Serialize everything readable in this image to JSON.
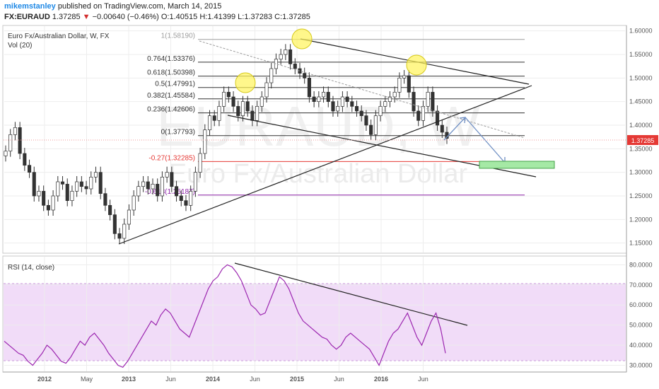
{
  "header": {
    "author": "mikemstanley",
    "published_text": "published on TradingView.com, March 14, 2015",
    "symbol": "FX:EURAUD",
    "last_price": "1.37285",
    "change_arrow": "▼",
    "change": "−0.00640 (−0.46%)",
    "open": "O:1.40515",
    "high": "H:1.41399",
    "low": "L:1.37283",
    "close": "C:1.37285"
  },
  "chart_data": [
    {
      "type": "candlestick",
      "title": "Euro Fx/Australian Dollar, W, FX",
      "subtitle": "Vol (20)",
      "watermark_symbol": "EURAUD, W",
      "watermark_name": "Euro Fx/Australian Dollar",
      "ylim": [
        1.13,
        1.61
      ],
      "y_ticks": [
        "1.60000",
        "1.55000",
        "1.50000",
        "1.45000",
        "1.40000",
        "1.35000",
        "1.30000",
        "1.25000",
        "1.20000",
        "1.15000"
      ],
      "x_ticks": [
        "2012",
        "May",
        "2013",
        "Jun",
        "2014",
        "Jun",
        "2015",
        "Jun",
        "2016",
        "Jun"
      ],
      "fib_levels": [
        {
          "label": "1(1.58190)",
          "value": 1.5819,
          "color": "#9e9e9e"
        },
        {
          "label": "0.764(1.53376)",
          "value": 1.53376,
          "color": "#333333"
        },
        {
          "label": "0.618(1.50398)",
          "value": 1.50398,
          "color": "#333333"
        },
        {
          "label": "0.5(1.47991)",
          "value": 1.47991,
          "color": "#333333"
        },
        {
          "label": "0.382(1.45584)",
          "value": 1.45584,
          "color": "#333333"
        },
        {
          "label": "0.236(1.42606)",
          "value": 1.42606,
          "color": "#333333"
        },
        {
          "label": "0(1.37793)",
          "value": 1.37793,
          "color": "#333333"
        },
        {
          "label": "-0.27(1.32285)",
          "value": 1.32285,
          "color": "#e53935"
        },
        {
          "label": "-0.618(1.25187)",
          "value": 1.25187,
          "color": "#8e24aa"
        }
      ],
      "close_series": [
        1.345,
        1.38,
        1.395,
        1.34,
        1.315,
        1.3,
        1.25,
        1.26,
        1.23,
        1.22,
        1.25,
        1.28,
        1.275,
        1.24,
        1.26,
        1.28,
        1.27,
        1.265,
        1.29,
        1.3,
        1.255,
        1.23,
        1.21,
        1.17,
        1.16,
        1.19,
        1.22,
        1.25,
        1.27,
        1.28,
        1.265,
        1.275,
        1.25,
        1.29,
        1.3,
        1.27,
        1.25,
        1.24,
        1.23,
        1.26,
        1.3,
        1.34,
        1.39,
        1.42,
        1.41,
        1.44,
        1.47,
        1.46,
        1.44,
        1.42,
        1.45,
        1.43,
        1.41,
        1.44,
        1.46,
        1.49,
        1.52,
        1.54,
        1.55,
        1.56,
        1.53,
        1.52,
        1.51,
        1.5,
        1.46,
        1.45,
        1.46,
        1.47,
        1.45,
        1.43,
        1.44,
        1.46,
        1.45,
        1.44,
        1.43,
        1.42,
        1.4,
        1.38,
        1.42,
        1.44,
        1.45,
        1.46,
        1.47,
        1.5,
        1.505,
        1.47,
        1.43,
        1.41,
        1.44,
        1.47,
        1.43,
        1.4,
        1.385,
        1.372
      ],
      "current_price": "1.37285"
    },
    {
      "type": "line",
      "title": "RSI (14, close)",
      "ylim": [
        27,
        84
      ],
      "y_ticks": [
        "80.0000",
        "70.0000",
        "60.0000",
        "50.0000",
        "40.0000",
        "30.0000"
      ],
      "band": [
        30,
        70
      ],
      "values": [
        42,
        40,
        38,
        36,
        35,
        32,
        30,
        33,
        36,
        40,
        38,
        35,
        32,
        31,
        34,
        38,
        42,
        40,
        44,
        46,
        43,
        40,
        36,
        33,
        30,
        29,
        32,
        36,
        40,
        44,
        48,
        52,
        50,
        55,
        58,
        56,
        52,
        48,
        46,
        44,
        50,
        56,
        62,
        68,
        72,
        74,
        78,
        80,
        79,
        76,
        72,
        66,
        60,
        58,
        55,
        56,
        62,
        68,
        74,
        72,
        68,
        62,
        56,
        52,
        50,
        48,
        46,
        44,
        43,
        40,
        38,
        40,
        44,
        46,
        44,
        42,
        40,
        38,
        34,
        30,
        36,
        42,
        46,
        48,
        52,
        56,
        50,
        44,
        40,
        46,
        52,
        56,
        48,
        36
      ]
    }
  ]
}
